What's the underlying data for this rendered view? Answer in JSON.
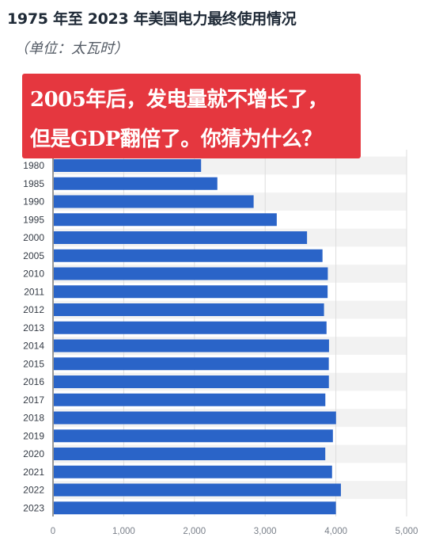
{
  "title": "1975 年至 2023 年美国电力最终使用情况",
  "subtitle": "（单位：太瓦时）",
  "callout": {
    "line1": "2005年后，发电量就不增长了，",
    "line2": "但是GDP翻倍了。你猜为什么？"
  },
  "colors": {
    "bar": "#2a64c8",
    "callout_bg": "#e5373f",
    "band": "#f2f2f2"
  },
  "chart_data": {
    "type": "bar",
    "orientation": "horizontal",
    "categories": [
      "1980",
      "1985",
      "1990",
      "1995",
      "2000",
      "2005",
      "2010",
      "2011",
      "2012",
      "2013",
      "2014",
      "2015",
      "2016",
      "2017",
      "2018",
      "2019",
      "2020",
      "2021",
      "2022",
      "2023"
    ],
    "values": [
      2094,
      2324,
      2837,
      3164,
      3592,
      3811,
      3886,
      3883,
      3832,
      3868,
      3903,
      3900,
      3901,
      3851,
      4002,
      3958,
      3850,
      3946,
      4071,
      4000
    ],
    "xlim": [
      0,
      5000
    ],
    "x_ticks": [
      0,
      1000,
      2000,
      3000,
      4000,
      5000
    ],
    "x_tick_labels": [
      "0",
      "1,000",
      "2,000",
      "3,000",
      "4,000",
      "5,000"
    ],
    "grid": true
  }
}
